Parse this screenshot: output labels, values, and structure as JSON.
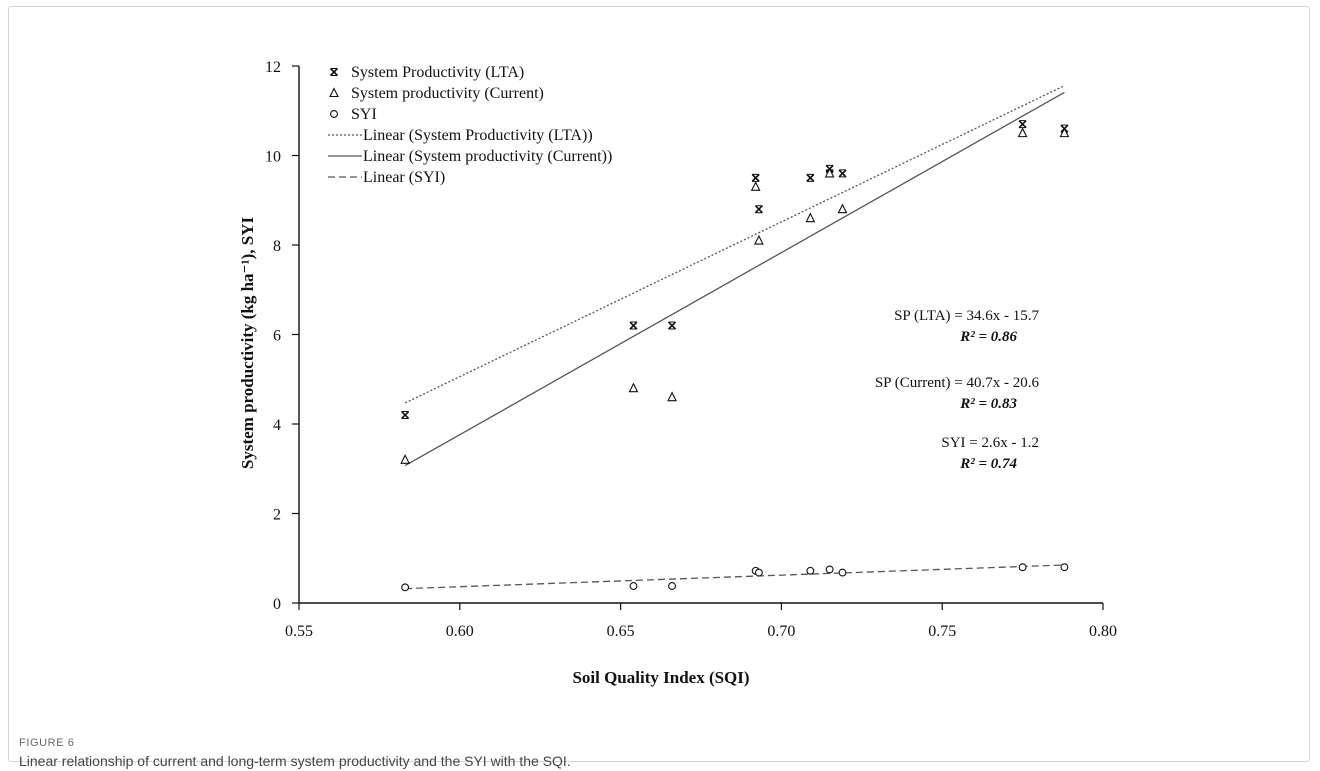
{
  "figure": {
    "label": "FIGURE 6",
    "caption": "Linear relationship of current and long-term system productivity and the SYI with the SQI."
  },
  "chart_data": {
    "type": "scatter",
    "title": "",
    "xlabel": "Soil Quality Index (SQI)",
    "ylabel": "System productivity (kg ha⁻¹), SYI",
    "xlim": [
      0.55,
      0.8
    ],
    "ylim": [
      0,
      12
    ],
    "x_ticks": [
      "0.55",
      "0.60",
      "0.65",
      "0.70",
      "0.75",
      "0.80"
    ],
    "y_ticks": [
      "0",
      "2",
      "4",
      "6",
      "8",
      "10",
      "12"
    ],
    "grid": false,
    "legend_position": "top-left",
    "series": [
      {
        "name": "System Productivity (LTA)",
        "marker": "x",
        "points": [
          [
            0.583,
            4.2
          ],
          [
            0.654,
            6.2
          ],
          [
            0.666,
            6.2
          ],
          [
            0.692,
            9.5
          ],
          [
            0.693,
            8.8
          ],
          [
            0.709,
            9.5
          ],
          [
            0.715,
            9.7
          ],
          [
            0.715,
            9.6
          ],
          [
            0.719,
            9.6
          ],
          [
            0.775,
            10.7
          ],
          [
            0.788,
            10.6
          ]
        ]
      },
      {
        "name": "System productivity (Current)",
        "marker": "triangle",
        "points": [
          [
            0.583,
            3.2
          ],
          [
            0.654,
            4.8
          ],
          [
            0.666,
            4.6
          ],
          [
            0.692,
            9.3
          ],
          [
            0.693,
            8.1
          ],
          [
            0.709,
            8.6
          ],
          [
            0.715,
            9.6
          ],
          [
            0.719,
            8.8
          ],
          [
            0.775,
            10.5
          ],
          [
            0.788,
            10.5
          ]
        ]
      },
      {
        "name": "SYI",
        "marker": "circle",
        "points": [
          [
            0.583,
            0.35
          ],
          [
            0.654,
            0.38
          ],
          [
            0.666,
            0.38
          ],
          [
            0.692,
            0.72
          ],
          [
            0.693,
            0.68
          ],
          [
            0.709,
            0.72
          ],
          [
            0.715,
            0.75
          ],
          [
            0.719,
            0.68
          ],
          [
            0.775,
            0.8
          ],
          [
            0.788,
            0.8
          ]
        ]
      }
    ],
    "trendlines": [
      {
        "name": "Linear (System Productivity (LTA))",
        "style": "dotted",
        "x_range": [
          0.583,
          0.788
        ],
        "y_range": [
          4.47,
          11.56
        ]
      },
      {
        "name": "Linear (System productivity (Current))",
        "style": "solid",
        "x_range": [
          0.583,
          0.788
        ],
        "y_range": [
          3.07,
          11.41
        ]
      },
      {
        "name": "Linear (SYI)",
        "style": "dashed",
        "x_range": [
          0.583,
          0.788
        ],
        "y_range": [
          0.32,
          0.85
        ]
      }
    ],
    "annotations": [
      {
        "equation": "SP (LTA) = 34.6x - 15.7",
        "r2": "R² = 0.86"
      },
      {
        "equation": "SP (Current) = 40.7x - 20.6",
        "r2": "R² = 0.83"
      },
      {
        "equation": "SYI = 2.6x - 1.2",
        "r2": "R² = 0.74"
      }
    ]
  }
}
